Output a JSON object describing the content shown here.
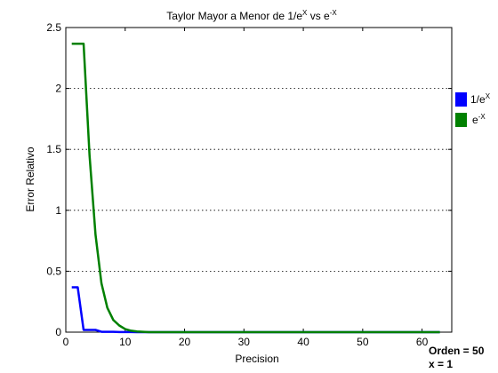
{
  "chart_data": {
    "type": "line",
    "title": {
      "prefix": "Taylor Mayor a Menor de 1/e",
      "sup1": "X",
      "middle": " vs e",
      "sup2": "-X"
    },
    "xlabel": "Precision",
    "ylabel": "Error Relativo",
    "xlim": [
      0,
      65
    ],
    "ylim": [
      0,
      2.5
    ],
    "xticks": [
      0,
      10,
      20,
      30,
      40,
      50,
      60
    ],
    "yticks": [
      0,
      0.5,
      1,
      1.5,
      2,
      2.5
    ],
    "ytick_labels": [
      "0",
      "0.5",
      "1",
      "1.5",
      "2",
      "2.5"
    ],
    "grid": "horizontal dotted",
    "legend_position": "outside-right",
    "series": [
      {
        "name_base": "1/e",
        "name_sup": "X",
        "color": "#0000ff",
        "x": [
          1,
          2,
          3,
          4,
          5,
          6,
          7,
          8,
          9,
          10,
          11,
          12,
          13,
          14,
          15,
          20,
          30,
          40,
          50,
          63
        ],
        "y": [
          0.368,
          0.368,
          0.018,
          0.018,
          0.018,
          0.003,
          0.003,
          0.003,
          0.001,
          0.001,
          0.001,
          0.0,
          0.0,
          0.0,
          0.0,
          0.0,
          0.0,
          0.0,
          0.0,
          0.0
        ]
      },
      {
        "name_base": "e",
        "name_sup": "-X",
        "color": "#008000",
        "x": [
          1,
          2,
          3,
          4,
          5,
          6,
          7,
          8,
          9,
          10,
          11,
          12,
          13,
          14,
          15,
          20,
          30,
          40,
          50,
          63
        ],
        "y": [
          2.367,
          2.367,
          2.367,
          1.45,
          0.8,
          0.4,
          0.2,
          0.1,
          0.055,
          0.025,
          0.012,
          0.006,
          0.003,
          0.0,
          0.0,
          0.0,
          0.0,
          0.0,
          0.0,
          0.0
        ]
      }
    ]
  },
  "annotations": {
    "order": "Orden = 50",
    "x_value": "x = 1"
  }
}
